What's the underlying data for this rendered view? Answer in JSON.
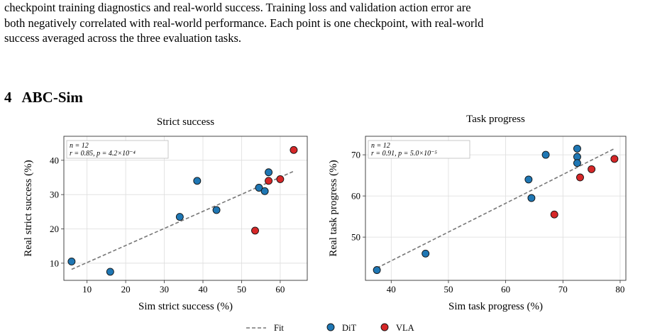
{
  "caption": {
    "lines": [
      "checkpoint training diagnostics and real-world success.  Training loss and validation action error are",
      "both negatively correlated with real-world performance. Each point is one checkpoint, with real-world",
      "success averaged across the three evaluation tasks."
    ]
  },
  "section": {
    "number": "4",
    "title": "ABC-Sim"
  },
  "legend": {
    "fit_label": "Fit",
    "series_labels": [
      "DiT",
      "VLA"
    ]
  },
  "colors": {
    "dit": "#1f77b4",
    "vla": "#d62728",
    "fit": "#777777",
    "grid": "#dddddd"
  },
  "chart_data": [
    {
      "type": "scatter",
      "title": "Strict success",
      "xlabel": "Sim strict success (%)",
      "ylabel": "Real strict success (%)",
      "xlim": [
        4,
        67
      ],
      "ylim": [
        5,
        47
      ],
      "xticks": [
        10,
        20,
        30,
        40,
        50,
        60
      ],
      "yticks": [
        10,
        20,
        30,
        40
      ],
      "grid": true,
      "stats": {
        "n_line": "n = 12",
        "r_line": "r = 0.85, p = 4.2×10⁻⁴"
      },
      "fit": {
        "x": [
          6,
          63.5
        ],
        "y": [
          8.2,
          36.8
        ]
      },
      "series": [
        {
          "name": "DiT",
          "x": [
            6,
            16,
            34,
            38.5,
            43.5,
            54.5,
            56,
            57
          ],
          "y": [
            10.5,
            7.5,
            23.5,
            34,
            25.5,
            32,
            31,
            36.5
          ]
        },
        {
          "name": "VLA",
          "x": [
            53.5,
            57,
            60,
            63.5
          ],
          "y": [
            19.5,
            34,
            34.5,
            43
          ]
        }
      ]
    },
    {
      "type": "scatter",
      "title": "Task progress",
      "xlabel": "Sim task progress (%)",
      "ylabel": "Real task progress (%)",
      "xlim": [
        35.5,
        81
      ],
      "ylim": [
        39.5,
        74.5
      ],
      "xticks": [
        40,
        50,
        60,
        70,
        80
      ],
      "yticks": [
        50,
        60,
        70
      ],
      "grid": true,
      "stats": {
        "n_line": "n = 12",
        "r_line": "r = 0.91, p = 5.0×10⁻⁵"
      },
      "fit": {
        "x": [
          37.5,
          79
        ],
        "y": [
          42.5,
          71.5
        ]
      },
      "series": [
        {
          "name": "DiT",
          "x": [
            37.5,
            46,
            64,
            64.5,
            67,
            72.5,
            72.5,
            72.5
          ],
          "y": [
            42,
            46,
            64,
            59.5,
            70,
            71.5,
            69.5,
            68
          ]
        },
        {
          "name": "VLA",
          "x": [
            68.5,
            73,
            75,
            79
          ],
          "y": [
            55.5,
            64.5,
            66.5,
            69
          ]
        }
      ]
    }
  ]
}
